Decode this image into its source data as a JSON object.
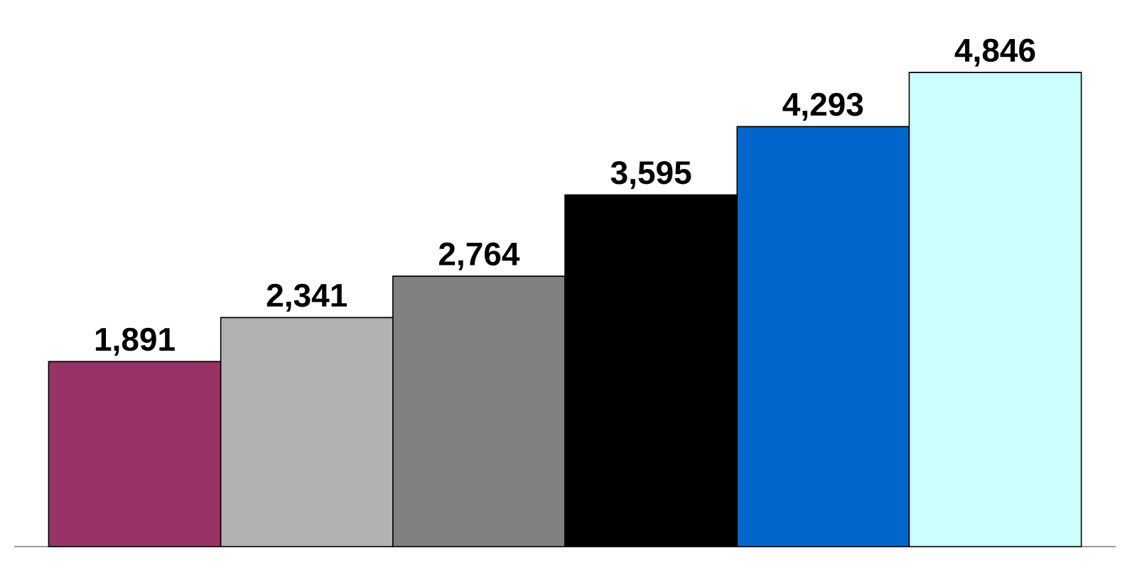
{
  "chart_data": {
    "type": "bar",
    "categories": [
      null,
      null,
      null,
      null,
      null,
      null
    ],
    "values": [
      1891,
      2341,
      2764,
      3595,
      4293,
      4846
    ],
    "value_labels": [
      "1,891",
      "2,341",
      "2,764",
      "3,595",
      "4,293",
      "4,846"
    ],
    "colors": [
      "#993366",
      "#b2b2b2",
      "#808080",
      "#000000",
      "#0066cc",
      "#ccffff"
    ]
  }
}
